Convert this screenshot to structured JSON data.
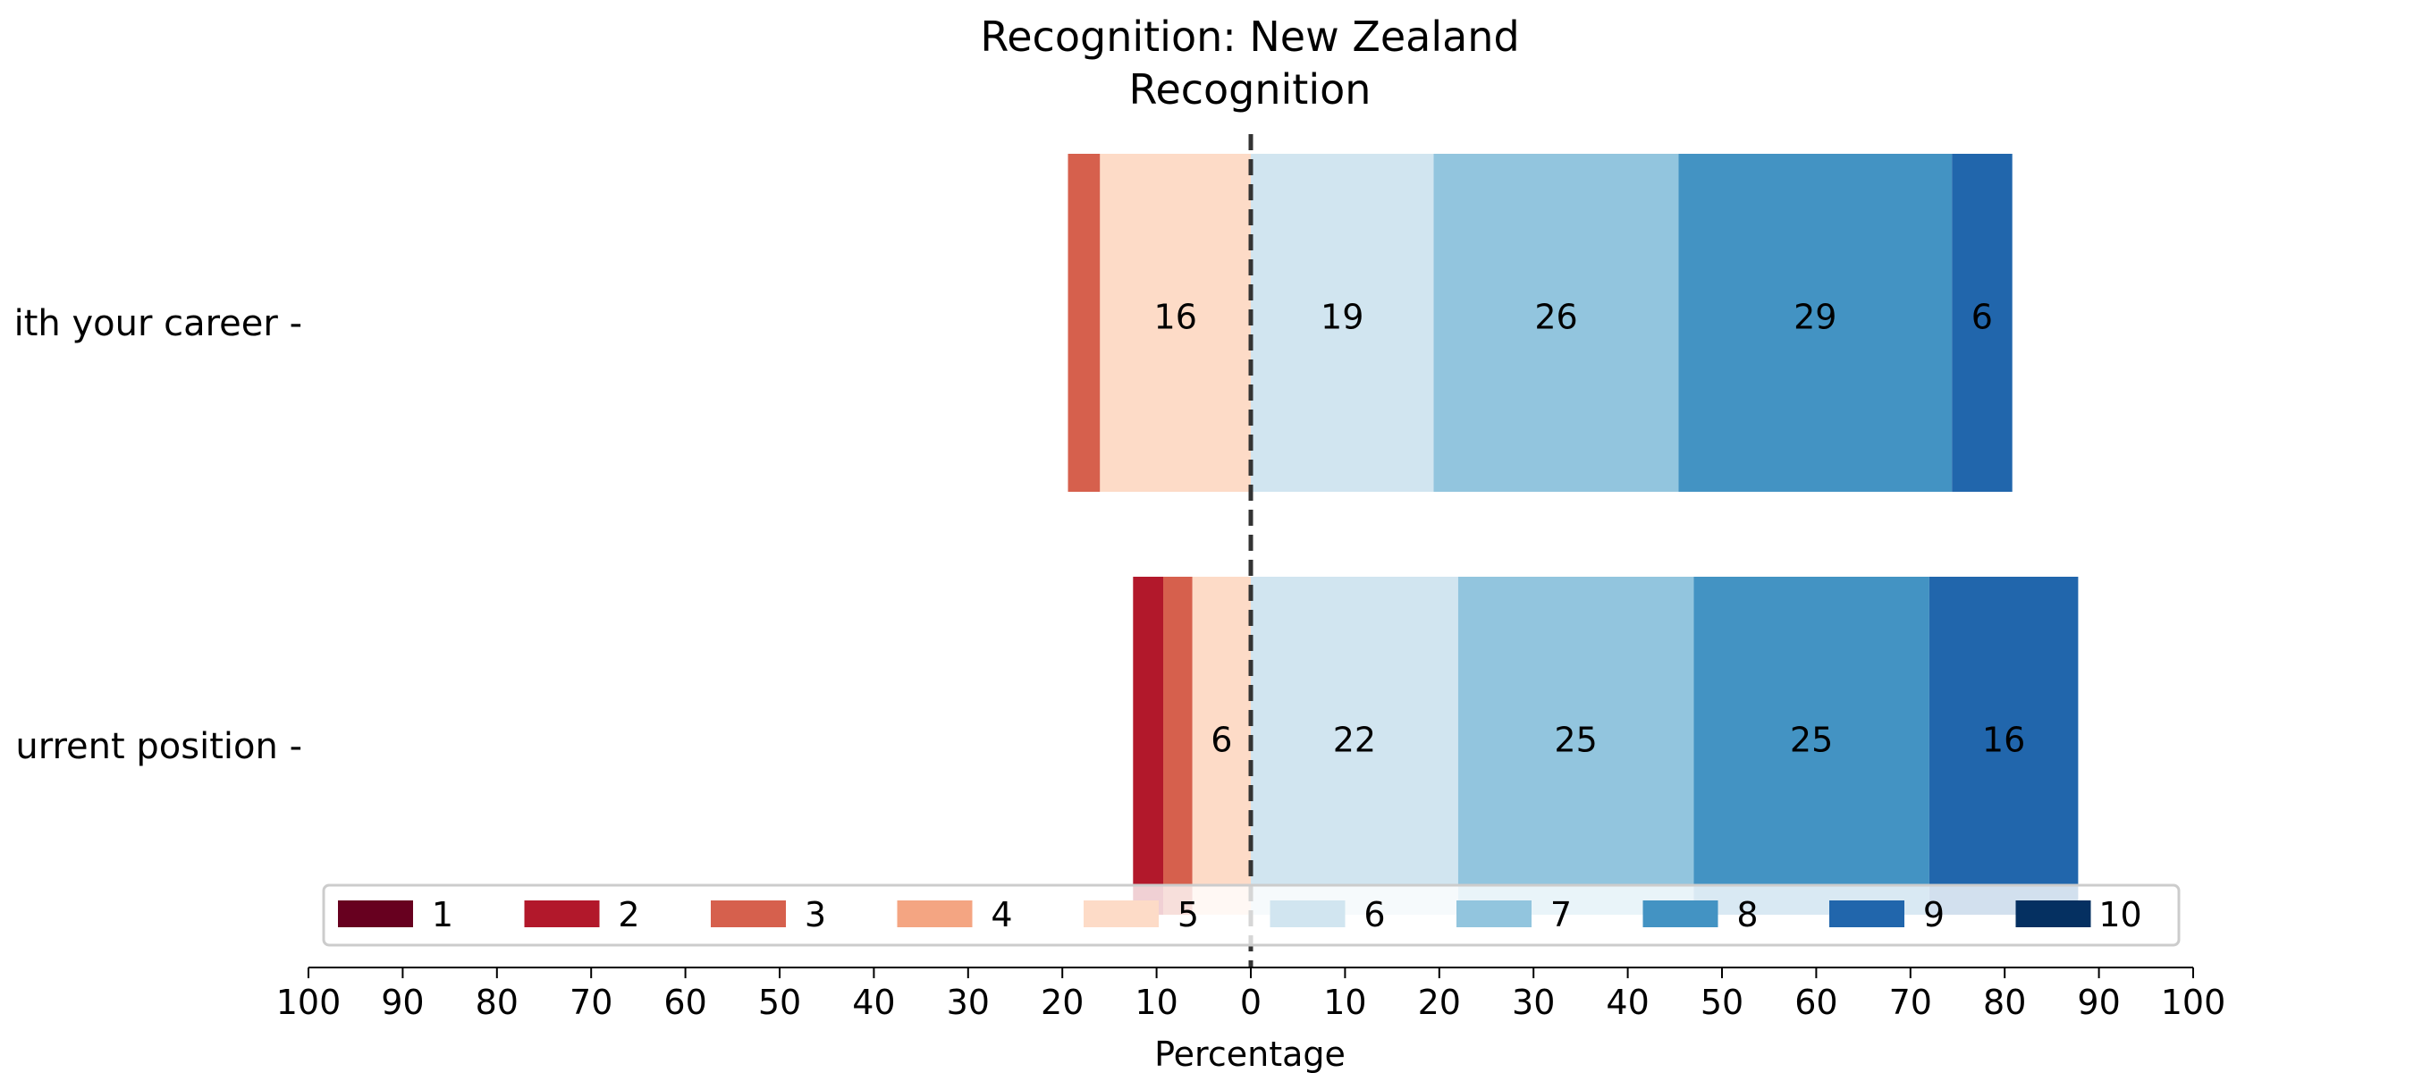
{
  "chart_data": {
    "type": "bar",
    "orientation": "horizontal-diverging",
    "title_line1": "Recognition: New Zealand",
    "title_line2": "Recognition",
    "xlabel": "Percentage",
    "xlim": [
      -100,
      100
    ],
    "x_ticks": [
      -100,
      -90,
      -80,
      -70,
      -60,
      -50,
      -40,
      -30,
      -20,
      -10,
      0,
      10,
      20,
      30,
      40,
      50,
      60,
      70,
      80,
      90,
      100
    ],
    "x_tick_labels": [
      "100",
      "90",
      "80",
      "70",
      "60",
      "50",
      "40",
      "30",
      "20",
      "10",
      "0",
      "10",
      "20",
      "30",
      "40",
      "50",
      "60",
      "70",
      "80",
      "90",
      "100"
    ],
    "categories": [
      "ith your career",
      "urrent position"
    ],
    "legend_position": "bottom",
    "series": [
      {
        "name": "1",
        "color": "#67001f",
        "values": [
          0,
          0
        ],
        "labels": [
          "",
          ""
        ]
      },
      {
        "name": "2",
        "color": "#b2182b",
        "values": [
          0,
          3.2
        ],
        "labels": [
          "",
          ""
        ]
      },
      {
        "name": "3",
        "color": "#d6604d",
        "values": [
          3.4,
          3.1
        ],
        "labels": [
          "",
          ""
        ]
      },
      {
        "name": "4",
        "color": "#f4a582",
        "values": [
          0,
          0
        ],
        "labels": [
          "",
          ""
        ]
      },
      {
        "name": "5",
        "color": "#fddbc7",
        "values": [
          16,
          6.2
        ],
        "labels": [
          "16",
          "6"
        ]
      },
      {
        "name": "6",
        "color": "#d1e5f0",
        "values": [
          19.4,
          22
        ],
        "labels": [
          "19",
          "22"
        ]
      },
      {
        "name": "7",
        "color": "#92c5de",
        "values": [
          26,
          25
        ],
        "labels": [
          "26",
          "25"
        ]
      },
      {
        "name": "8",
        "color": "#4393c3",
        "values": [
          29,
          25
        ],
        "labels": [
          "29",
          "25"
        ]
      },
      {
        "name": "9",
        "color": "#2166ac",
        "values": [
          6.4,
          15.8
        ],
        "labels": [
          "6",
          "16"
        ]
      },
      {
        "name": "10",
        "color": "#053061",
        "values": [
          0,
          0
        ],
        "labels": [
          "",
          ""
        ]
      }
    ],
    "neutral_index": 4,
    "neutral_split": "centered-left",
    "center_line_color": "#333333"
  }
}
